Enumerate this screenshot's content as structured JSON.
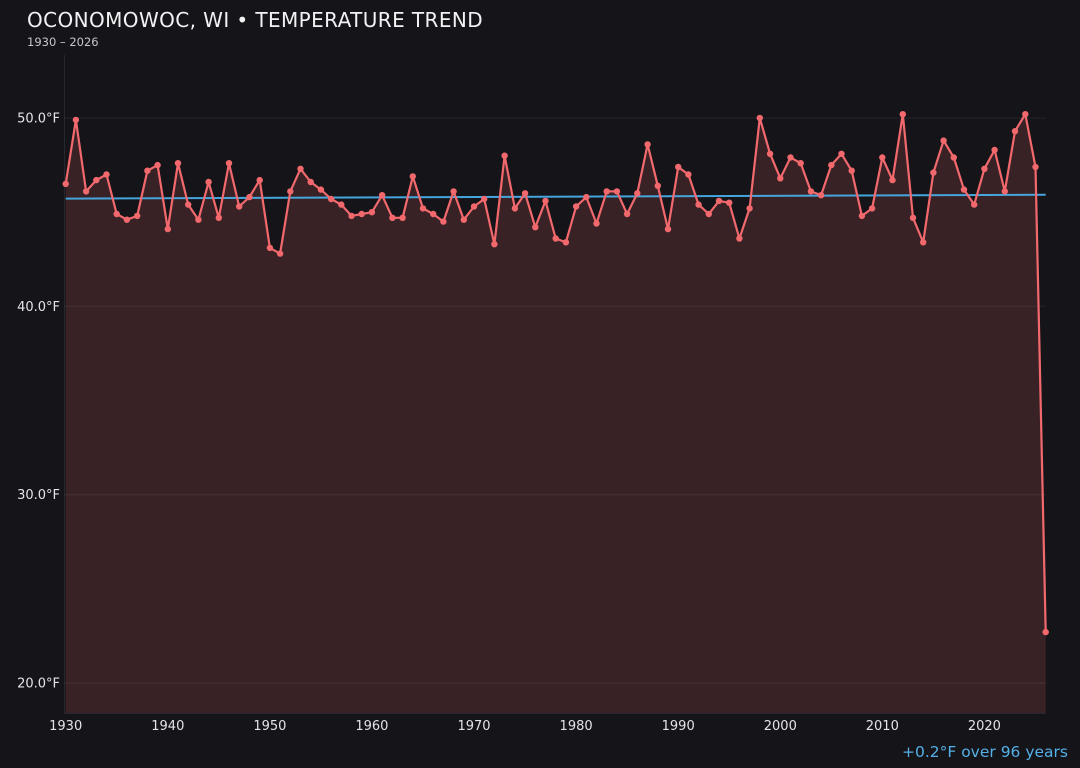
{
  "header": {
    "title": "OCONOMOWOC, WI • TEMPERATURE TREND",
    "subtitle": "1930 – 2026"
  },
  "annotation": {
    "text": "+0.2°F over 96 years",
    "color": "#55b0e8"
  },
  "chart_data": {
    "type": "line",
    "title": "OCONOMOWOC, WI • TEMPERATURE TREND",
    "subtitle": "1930 – 2026",
    "xlabel": "",
    "ylabel": "",
    "x_start_year": 1930,
    "x_end_year": 2026,
    "x_ticks": [
      1930,
      1940,
      1950,
      1960,
      1970,
      1980,
      1990,
      2000,
      2010,
      2020
    ],
    "y_ticks": [
      50,
      40,
      30,
      20
    ],
    "y_tick_labels": [
      "50.0°F",
      "40.0°F",
      "30.0°F",
      "20.0°F"
    ],
    "ylim": [
      18.4,
      52.5
    ],
    "grid": true,
    "legend": "none",
    "series": [
      {
        "name": "annual-mean-temperature",
        "values": [
          46.5,
          49.9,
          46.1,
          46.7,
          47.0,
          44.9,
          44.6,
          44.8,
          47.2,
          47.5,
          44.1,
          47.6,
          45.4,
          44.6,
          46.6,
          44.7,
          47.6,
          45.3,
          45.8,
          46.7,
          43.1,
          42.8,
          46.1,
          47.3,
          46.6,
          46.2,
          45.7,
          45.4,
          44.8,
          44.9,
          45.0,
          45.9,
          44.7,
          44.7,
          46.9,
          45.2,
          44.9,
          44.5,
          46.1,
          44.6,
          45.3,
          45.7,
          43.3,
          48.0,
          45.2,
          46.0,
          44.2,
          45.6,
          43.6,
          43.4,
          45.3,
          45.8,
          44.4,
          46.1,
          46.1,
          44.9,
          46.0,
          48.6,
          46.4,
          44.1,
          47.4,
          47.0,
          45.4,
          44.9,
          45.6,
          45.5,
          43.6,
          45.2,
          50.0,
          48.1,
          46.8,
          47.9,
          47.6,
          46.1,
          45.9,
          47.5,
          48.1,
          47.2,
          44.8,
          45.2,
          47.9,
          46.7,
          50.2,
          44.7,
          43.4,
          47.1,
          48.8,
          47.9,
          46.2,
          45.4,
          47.3,
          48.3,
          46.1,
          49.3,
          50.2,
          47.4,
          22.7
        ]
      }
    ],
    "trend": {
      "start_value": 45.72,
      "end_value": 45.92,
      "label": "+0.2°F over 96 years"
    },
    "colors": {
      "line": "#f2696d",
      "marker": "#f2696d",
      "fill": "rgba(242,105,109,0.17)",
      "trend": "#46a5dc",
      "background": "#141419",
      "grid": "rgba(255,255,255,0.07)",
      "axis": "#26262e",
      "tick_text": "#e3e3e8",
      "annotation": "#55b0e8"
    }
  }
}
